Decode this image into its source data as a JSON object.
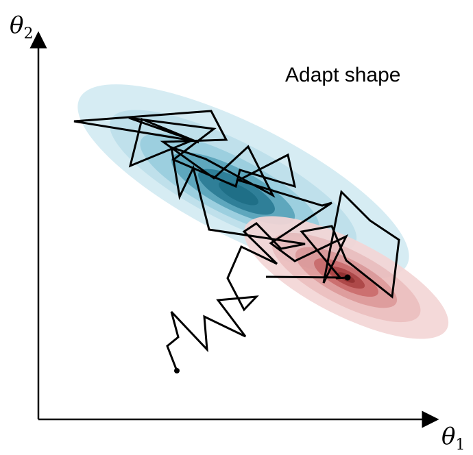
{
  "annotation": {
    "text": "Adapt shape"
  },
  "axes": {
    "y_label_main": "θ",
    "y_label_sub": "2",
    "x_label_main": "θ",
    "x_label_sub": "1"
  },
  "colors": {
    "blue_levels": [
      "#d6ecf3",
      "#b4dbe7",
      "#8ec8da",
      "#5ea7bd",
      "#2f7f98",
      "#1f6f87"
    ],
    "red_levels": [
      "#f4d6d6",
      "#ebbcbc",
      "#dc9595",
      "#c86464",
      "#a83a3a",
      "#8b2222"
    ],
    "trace": "#000000"
  }
}
